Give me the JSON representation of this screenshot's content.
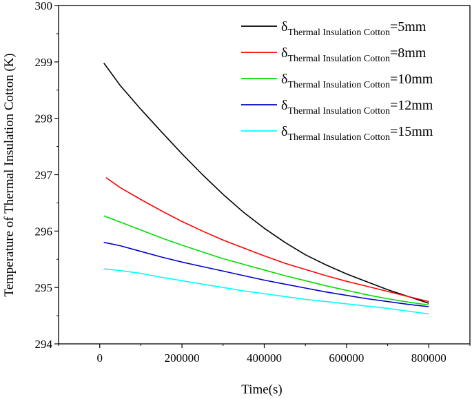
{
  "chart_data": {
    "type": "line",
    "title": "",
    "xlabel": "Time(s)",
    "ylabel": "Temperature of Thermal Insulation Cotton (K)",
    "xlim": [
      -100000,
      900000
    ],
    "ylim": [
      294,
      300
    ],
    "xticks": [
      0,
      200000,
      400000,
      600000,
      800000
    ],
    "xtick_labels": [
      "0",
      "200000",
      "400000",
      "600000",
      "800000"
    ],
    "yticks": [
      294,
      295,
      296,
      297,
      298,
      299,
      300
    ],
    "ytick_labels": [
      "294",
      "295",
      "296",
      "297",
      "298",
      "299",
      "300"
    ],
    "grid": false,
    "legend_position": "top-right",
    "series": [
      {
        "name": "δThermal Insulation Cotton=5mm",
        "symbol": "δ",
        "subscript": "Thermal Insulation Cotton",
        "value_text": "=5mm",
        "color": "#000000",
        "x": [
          10000,
          50000,
          100000,
          150000,
          200000,
          250000,
          300000,
          350000,
          400000,
          450000,
          500000,
          550000,
          600000,
          650000,
          700000,
          750000,
          800000
        ],
        "y": [
          298.98,
          298.58,
          298.16,
          297.76,
          297.37,
          297.0,
          296.65,
          296.33,
          296.05,
          295.8,
          295.58,
          295.4,
          295.24,
          295.1,
          294.96,
          294.84,
          294.72
        ]
      },
      {
        "name": "δThermal Insulation Cotton=8mm",
        "symbol": "δ",
        "subscript": "Thermal Insulation Cotton",
        "value_text": "=8mm",
        "color": "#ff0000",
        "x": [
          15000,
          50000,
          100000,
          150000,
          200000,
          250000,
          300000,
          350000,
          400000,
          450000,
          500000,
          550000,
          600000,
          650000,
          700000,
          750000,
          800000
        ],
        "y": [
          296.95,
          296.77,
          296.56,
          296.36,
          296.17,
          296.0,
          295.84,
          295.7,
          295.56,
          295.43,
          295.32,
          295.21,
          295.11,
          295.02,
          294.93,
          294.84,
          294.75
        ]
      },
      {
        "name": "δThermal Insulation Cotton=10mm",
        "symbol": "δ",
        "subscript": "Thermal Insulation Cotton",
        "value_text": "=10mm",
        "color": "#00dd00",
        "x": [
          10000,
          50000,
          100000,
          150000,
          200000,
          250000,
          300000,
          350000,
          400000,
          450000,
          500000,
          550000,
          600000,
          650000,
          700000,
          750000,
          800000
        ],
        "y": [
          296.27,
          296.16,
          296.02,
          295.88,
          295.75,
          295.63,
          295.51,
          295.41,
          295.31,
          295.21,
          295.12,
          295.03,
          294.95,
          294.87,
          294.8,
          294.74,
          294.69
        ]
      },
      {
        "name": "δThermal Insulation Cotton=12mm",
        "symbol": "δ",
        "subscript": "Thermal Insulation Cotton",
        "value_text": "=12mm",
        "color": "#0000cc",
        "x": [
          10000,
          50000,
          100000,
          150000,
          200000,
          250000,
          300000,
          350000,
          400000,
          450000,
          500000,
          550000,
          600000,
          650000,
          700000,
          750000,
          800000
        ],
        "y": [
          295.8,
          295.74,
          295.64,
          295.54,
          295.45,
          295.37,
          295.29,
          295.21,
          295.13,
          295.06,
          294.99,
          294.92,
          294.86,
          294.8,
          294.75,
          294.7,
          294.66
        ]
      },
      {
        "name": "δThermal Insulation Cotton=15mm",
        "symbol": "δ",
        "subscript": "Thermal Insulation Cotton",
        "value_text": "=15mm",
        "color": "#00ffff",
        "x": [
          10000,
          50000,
          100000,
          150000,
          200000,
          250000,
          300000,
          350000,
          400000,
          450000,
          500000,
          550000,
          600000,
          650000,
          700000,
          750000,
          800000
        ],
        "y": [
          295.33,
          295.3,
          295.25,
          295.18,
          295.12,
          295.06,
          295.0,
          294.94,
          294.89,
          294.84,
          294.79,
          294.75,
          294.71,
          294.67,
          294.63,
          294.58,
          294.53
        ]
      }
    ]
  }
}
